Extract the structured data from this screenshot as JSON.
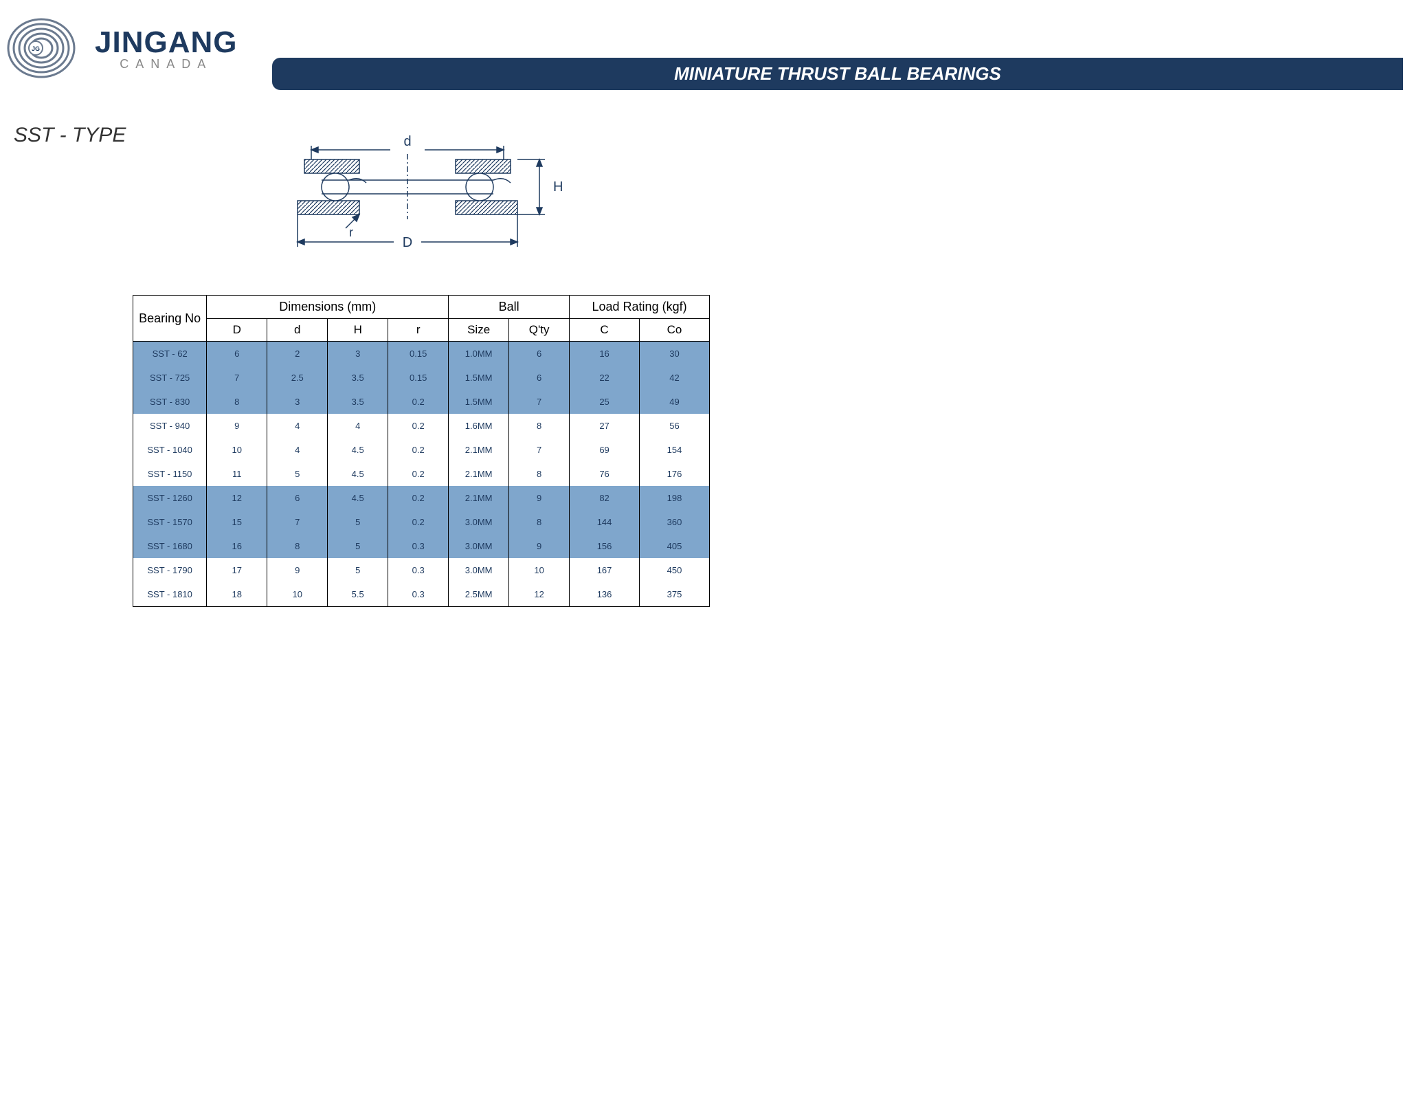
{
  "header": {
    "company": "JINGANG",
    "country": "CANADA",
    "title": "MINIATURE THRUST BALL BEARINGS"
  },
  "subtitle": "SST - TYPE",
  "diagram": {
    "labels": {
      "d": "d",
      "D": "D",
      "H": "H",
      "r": "r"
    },
    "hatch_color": "#1e3a5f",
    "stroke": "#1e3a5f",
    "ball_fill": "#ffffff"
  },
  "table": {
    "header_groups": [
      "Bearing No",
      "Dimensions (mm)",
      "Ball",
      "Load Rating (kgf)"
    ],
    "sub_headers": [
      "D",
      "d",
      "H",
      "r",
      "Size",
      "Q'ty",
      "C",
      "Co"
    ],
    "row_blue_bg": "#7fa6cc",
    "row_white_bg": "#ffffff",
    "text_color": "#1e3a5f",
    "rows": [
      {
        "bn": "SST - 62",
        "D": "6",
        "d": "2",
        "H": "3",
        "r": "0.15",
        "size": "1.0MM",
        "qty": "6",
        "C": "16",
        "Co": "30",
        "c": "blue"
      },
      {
        "bn": "SST - 725",
        "D": "7",
        "d": "2.5",
        "H": "3.5",
        "r": "0.15",
        "size": "1.5MM",
        "qty": "6",
        "C": "22",
        "Co": "42",
        "c": "blue"
      },
      {
        "bn": "SST - 830",
        "D": "8",
        "d": "3",
        "H": "3.5",
        "r": "0.2",
        "size": "1.5MM",
        "qty": "7",
        "C": "25",
        "Co": "49",
        "c": "blue"
      },
      {
        "bn": "SST - 940",
        "D": "9",
        "d": "4",
        "H": "4",
        "r": "0.2",
        "size": "1.6MM",
        "qty": "8",
        "C": "27",
        "Co": "56",
        "c": "white"
      },
      {
        "bn": "SST - 1040",
        "D": "10",
        "d": "4",
        "H": "4.5",
        "r": "0.2",
        "size": "2.1MM",
        "qty": "7",
        "C": "69",
        "Co": "154",
        "c": "white"
      },
      {
        "bn": "SST - 1150",
        "D": "11",
        "d": "5",
        "H": "4.5",
        "r": "0.2",
        "size": "2.1MM",
        "qty": "8",
        "C": "76",
        "Co": "176",
        "c": "white"
      },
      {
        "bn": "SST - 1260",
        "D": "12",
        "d": "6",
        "H": "4.5",
        "r": "0.2",
        "size": "2.1MM",
        "qty": "9",
        "C": "82",
        "Co": "198",
        "c": "blue"
      },
      {
        "bn": "SST - 1570",
        "D": "15",
        "d": "7",
        "H": "5",
        "r": "0.2",
        "size": "3.0MM",
        "qty": "8",
        "C": "144",
        "Co": "360",
        "c": "blue"
      },
      {
        "bn": "SST - 1680",
        "D": "16",
        "d": "8",
        "H": "5",
        "r": "0.3",
        "size": "3.0MM",
        "qty": "9",
        "C": "156",
        "Co": "405",
        "c": "blue"
      },
      {
        "bn": "SST - 1790",
        "D": "17",
        "d": "9",
        "H": "5",
        "r": "0.3",
        "size": "3.0MM",
        "qty": "10",
        "C": "167",
        "Co": "450",
        "c": "white"
      },
      {
        "bn": "SST - 1810",
        "D": "18",
        "d": "10",
        "H": "5.5",
        "r": "0.3",
        "size": "2.5MM",
        "qty": "12",
        "C": "136",
        "Co": "375",
        "c": "white"
      }
    ]
  }
}
